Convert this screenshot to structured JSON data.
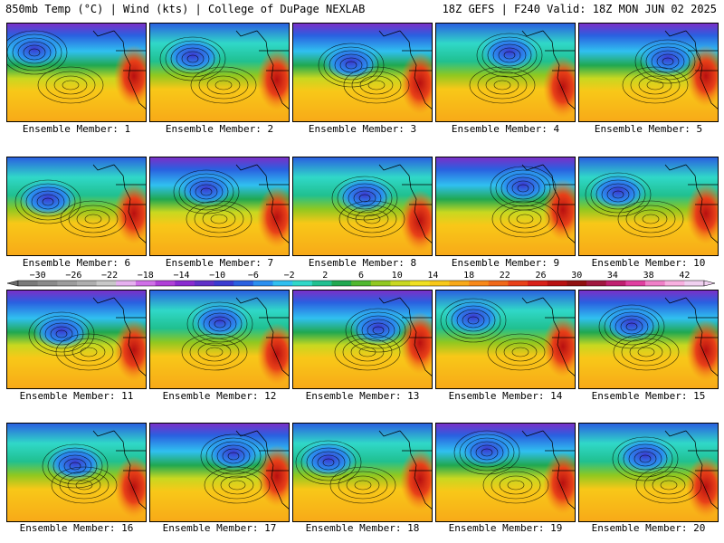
{
  "header": {
    "left": "850mb Temp (°C) | Wind (kts) | College of DuPage NEXLAB",
    "right": "18Z GEFS | F240 Valid: 18Z MON JUN 02 2025"
  },
  "panels": [
    {
      "caption": "Ensemble Member: 1"
    },
    {
      "caption": "Ensemble Member: 2"
    },
    {
      "caption": "Ensemble Member: 3"
    },
    {
      "caption": "Ensemble Member: 4"
    },
    {
      "caption": "Ensemble Member: 5"
    },
    {
      "caption": "Ensemble Member: 6"
    },
    {
      "caption": "Ensemble Member: 7"
    },
    {
      "caption": "Ensemble Member: 8"
    },
    {
      "caption": "Ensemble Member: 9"
    },
    {
      "caption": "Ensemble Member: 10"
    },
    {
      "caption": "Ensemble Member: 11"
    },
    {
      "caption": "Ensemble Member: 12"
    },
    {
      "caption": "Ensemble Member: 13"
    },
    {
      "caption": "Ensemble Member: 14"
    },
    {
      "caption": "Ensemble Member: 15"
    },
    {
      "caption": "Ensemble Member: 16"
    },
    {
      "caption": "Ensemble Member: 17"
    },
    {
      "caption": "Ensemble Member: 18"
    },
    {
      "caption": "Ensemble Member: 19"
    },
    {
      "caption": "Ensemble Member: 20"
    }
  ],
  "colorbar": {
    "labels": [
      "−30",
      "−26",
      "−22",
      "−18",
      "−14",
      "−10",
      "−6",
      "−2",
      "2",
      "6",
      "10",
      "14",
      "18",
      "22",
      "26",
      "30",
      "34",
      "38",
      "42"
    ],
    "colors": [
      "#7a7a7a",
      "#8a8a8a",
      "#9c9c9c",
      "#aeaeae",
      "#c8c8c8",
      "#e6b0f0",
      "#d070e8",
      "#b040d8",
      "#8a2ad0",
      "#6030c8",
      "#3a3ad0",
      "#2a60e0",
      "#2a8ff0",
      "#30c0f0",
      "#30d8c8",
      "#20c090",
      "#20a850",
      "#50b830",
      "#90c820",
      "#c8d820",
      "#f0e020",
      "#f8c818",
      "#f8a818",
      "#f88818",
      "#f06818",
      "#e84018",
      "#d82018",
      "#b81010",
      "#901010",
      "#a01840",
      "#c02070",
      "#e040a0",
      "#f080c8",
      "#f8b0e0",
      "#f0d0f0"
    ]
  }
}
